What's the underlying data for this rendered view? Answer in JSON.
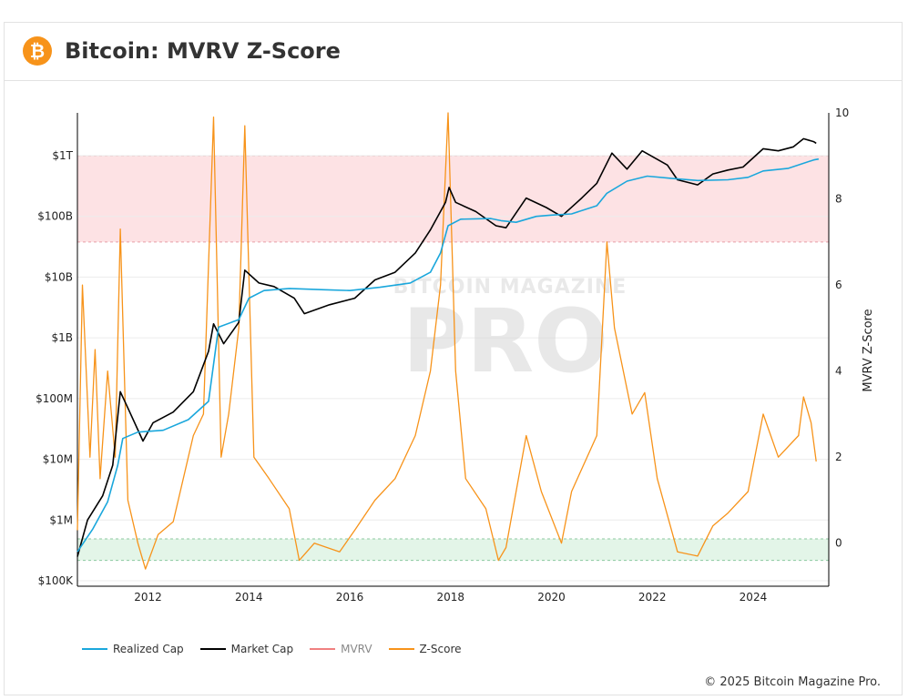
{
  "header": {
    "title": "Bitcoin: MVRV Z-Score",
    "logo_symbol": "₿",
    "logo_color": "#f7931a"
  },
  "watermark": {
    "top": "BITCOIN MAGAZINE",
    "main": "PRO"
  },
  "copyright": "© 2025 Bitcoin Magazine Pro.",
  "colors": {
    "realized_cap": "#1aa7dc",
    "market_cap": "#000000",
    "mvrv": "#f08080",
    "zscore": "#f7931a",
    "red_zone": "#fde2e4",
    "green_zone": "#e3f5e8"
  },
  "chart_data": {
    "type": "line",
    "title": "Bitcoin: MVRV Z-Score",
    "xlabel": "",
    "y_left": {
      "scale": "log",
      "range": [
        100000,
        10000000000000
      ],
      "ticks": [
        {
          "v": 100000,
          "label": "$100K"
        },
        {
          "v": 1000000,
          "label": "$1M"
        },
        {
          "v": 10000000,
          "label": "$10M"
        },
        {
          "v": 100000000,
          "label": "$100M"
        },
        {
          "v": 1000000000,
          "label": "$1B"
        },
        {
          "v": 10000000000,
          "label": "$10B"
        },
        {
          "v": 100000000000,
          "label": "$100B"
        },
        {
          "v": 1000000000000,
          "label": "$1T"
        }
      ]
    },
    "y_right": {
      "label": "MVRV Z-Score",
      "range": [
        -1,
        10
      ],
      "ticks": [
        0,
        2,
        4,
        6,
        8,
        10
      ]
    },
    "x_range": [
      2010.6,
      2025.5
    ],
    "x_ticks": [
      2012,
      2014,
      2016,
      2018,
      2020,
      2022,
      2024
    ],
    "zones": [
      {
        "name": "overvalued",
        "from": 7,
        "to": 9,
        "axis": "right"
      },
      {
        "name": "undervalued",
        "from": -0.4,
        "to": 0.1,
        "axis": "right"
      }
    ],
    "legend": [
      "Realized Cap",
      "Market Cap",
      "MVRV",
      "Z-Score"
    ],
    "series": [
      {
        "name": "Realized Cap",
        "axis": "left",
        "points": [
          [
            2010.6,
            300000
          ],
          [
            2010.9,
            700000
          ],
          [
            2011.2,
            2000000
          ],
          [
            2011.4,
            8000000
          ],
          [
            2011.5,
            22000000
          ],
          [
            2011.8,
            28000000
          ],
          [
            2012.3,
            30000000
          ],
          [
            2012.8,
            45000000
          ],
          [
            2013.2,
            90000000
          ],
          [
            2013.4,
            1500000000
          ],
          [
            2013.8,
            2000000000
          ],
          [
            2014.0,
            4500000000
          ],
          [
            2014.3,
            6000000000
          ],
          [
            2014.8,
            6500000000
          ],
          [
            2015.5,
            6200000000
          ],
          [
            2016.0,
            6000000000
          ],
          [
            2016.6,
            6800000000
          ],
          [
            2017.2,
            8000000000
          ],
          [
            2017.6,
            12000000000
          ],
          [
            2017.8,
            25000000000
          ],
          [
            2017.95,
            70000000000
          ],
          [
            2018.2,
            90000000000
          ],
          [
            2018.8,
            92000000000
          ],
          [
            2019.0,
            85000000000
          ],
          [
            2019.3,
            80000000000
          ],
          [
            2019.7,
            100000000000
          ],
          [
            2020.0,
            105000000000
          ],
          [
            2020.4,
            110000000000
          ],
          [
            2020.9,
            150000000000
          ],
          [
            2021.1,
            240000000000
          ],
          [
            2021.5,
            380000000000
          ],
          [
            2021.9,
            460000000000
          ],
          [
            2022.4,
            420000000000
          ],
          [
            2022.9,
            390000000000
          ],
          [
            2023.5,
            400000000000
          ],
          [
            2023.9,
            440000000000
          ],
          [
            2024.2,
            560000000000
          ],
          [
            2024.7,
            620000000000
          ],
          [
            2025.2,
            850000000000
          ],
          [
            2025.3,
            880000000000
          ]
        ]
      },
      {
        "name": "Market Cap",
        "axis": "left",
        "points": [
          [
            2010.6,
            250000
          ],
          [
            2010.8,
            1000000
          ],
          [
            2011.1,
            2500000
          ],
          [
            2011.3,
            8000000
          ],
          [
            2011.45,
            130000000
          ],
          [
            2011.6,
            70000000
          ],
          [
            2011.9,
            20000000
          ],
          [
            2012.1,
            40000000
          ],
          [
            2012.5,
            60000000
          ],
          [
            2012.9,
            130000000
          ],
          [
            2013.2,
            600000000
          ],
          [
            2013.3,
            1700000000
          ],
          [
            2013.5,
            800000000
          ],
          [
            2013.8,
            1800000000
          ],
          [
            2013.92,
            13000000000
          ],
          [
            2014.2,
            8000000000
          ],
          [
            2014.5,
            7000000000
          ],
          [
            2014.9,
            4500000000
          ],
          [
            2015.1,
            2500000000
          ],
          [
            2015.6,
            3500000000
          ],
          [
            2016.1,
            4500000000
          ],
          [
            2016.5,
            9000000000
          ],
          [
            2016.9,
            12000000000
          ],
          [
            2017.3,
            25000000000
          ],
          [
            2017.6,
            60000000000
          ],
          [
            2017.9,
            170000000000
          ],
          [
            2017.97,
            300000000000
          ],
          [
            2018.1,
            170000000000
          ],
          [
            2018.5,
            120000000000
          ],
          [
            2018.9,
            70000000000
          ],
          [
            2019.1,
            65000000000
          ],
          [
            2019.5,
            200000000000
          ],
          [
            2019.9,
            140000000000
          ],
          [
            2020.2,
            100000000000
          ],
          [
            2020.6,
            200000000000
          ],
          [
            2020.9,
            350000000000
          ],
          [
            2021.2,
            1100000000000
          ],
          [
            2021.5,
            600000000000
          ],
          [
            2021.8,
            1200000000000
          ],
          [
            2022.3,
            700000000000
          ],
          [
            2022.5,
            400000000000
          ],
          [
            2022.9,
            330000000000
          ],
          [
            2023.2,
            500000000000
          ],
          [
            2023.5,
            580000000000
          ],
          [
            2023.8,
            650000000000
          ],
          [
            2024.2,
            1300000000000
          ],
          [
            2024.5,
            1200000000000
          ],
          [
            2024.8,
            1400000000000
          ],
          [
            2025.0,
            1900000000000
          ],
          [
            2025.2,
            1700000000000
          ],
          [
            2025.25,
            1600000000000
          ]
        ]
      },
      {
        "name": "Z-Score",
        "axis": "right",
        "points": [
          [
            2010.6,
            0.3
          ],
          [
            2010.7,
            6.0
          ],
          [
            2010.85,
            2.0
          ],
          [
            2010.95,
            4.5
          ],
          [
            2011.05,
            1.5
          ],
          [
            2011.2,
            4.0
          ],
          [
            2011.35,
            2.0
          ],
          [
            2011.45,
            7.3
          ],
          [
            2011.6,
            1.0
          ],
          [
            2011.8,
            0.0
          ],
          [
            2011.95,
            -0.6
          ],
          [
            2012.2,
            0.2
          ],
          [
            2012.5,
            0.5
          ],
          [
            2012.9,
            2.5
          ],
          [
            2013.1,
            3.0
          ],
          [
            2013.3,
            9.9
          ],
          [
            2013.45,
            2.0
          ],
          [
            2013.6,
            3.0
          ],
          [
            2013.8,
            5.0
          ],
          [
            2013.92,
            9.7
          ],
          [
            2014.1,
            2.0
          ],
          [
            2014.4,
            1.5
          ],
          [
            2014.8,
            0.8
          ],
          [
            2015.0,
            -0.4
          ],
          [
            2015.3,
            0.0
          ],
          [
            2015.8,
            -0.2
          ],
          [
            2016.1,
            0.3
          ],
          [
            2016.5,
            1.0
          ],
          [
            2016.9,
            1.5
          ],
          [
            2017.3,
            2.5
          ],
          [
            2017.6,
            4.0
          ],
          [
            2017.8,
            6.0
          ],
          [
            2017.95,
            10.0
          ],
          [
            2018.1,
            4.0
          ],
          [
            2018.3,
            1.5
          ],
          [
            2018.7,
            0.8
          ],
          [
            2018.95,
            -0.4
          ],
          [
            2019.1,
            -0.1
          ],
          [
            2019.5,
            2.5
          ],
          [
            2019.8,
            1.2
          ],
          [
            2020.2,
            0.0
          ],
          [
            2020.4,
            1.2
          ],
          [
            2020.9,
            2.5
          ],
          [
            2021.1,
            7.0
          ],
          [
            2021.25,
            5.0
          ],
          [
            2021.6,
            3.0
          ],
          [
            2021.85,
            3.5
          ],
          [
            2022.1,
            1.5
          ],
          [
            2022.5,
            -0.2
          ],
          [
            2022.9,
            -0.3
          ],
          [
            2023.2,
            0.4
          ],
          [
            2023.5,
            0.7
          ],
          [
            2023.9,
            1.2
          ],
          [
            2024.2,
            3.0
          ],
          [
            2024.5,
            2.0
          ],
          [
            2024.9,
            2.5
          ],
          [
            2025.0,
            3.4
          ],
          [
            2025.15,
            2.8
          ],
          [
            2025.25,
            1.9
          ]
        ]
      }
    ]
  }
}
